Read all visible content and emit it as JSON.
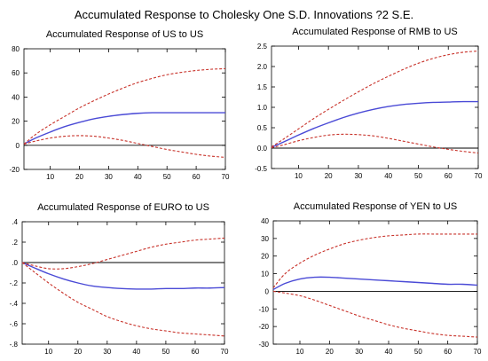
{
  "figure": {
    "title": "Accumulated Response to Cholesky One S.D. Innovations ?2 S.E."
  },
  "colors": {
    "response": "#4a4ad6",
    "band": "#c8322a",
    "zero_line": "#000000",
    "frame": "#000000"
  },
  "chart_data": [
    {
      "type": "line",
      "title": "Accumulated Response of US to US",
      "xlabel": "",
      "ylabel": "",
      "xlim": [
        1,
        70
      ],
      "ylim": [
        -20,
        80
      ],
      "xticks": [
        10,
        20,
        30,
        40,
        50,
        60,
        70
      ],
      "yticks": [
        -20,
        0,
        20,
        40,
        60,
        80
      ],
      "ytick_labels": [
        "-20",
        "0",
        "20",
        "40",
        "60",
        "80"
      ],
      "grid": false,
      "zero_line": true,
      "x": [
        1,
        5,
        10,
        15,
        20,
        25,
        30,
        35,
        40,
        45,
        50,
        55,
        60,
        65,
        70
      ],
      "series": [
        {
          "role": "response",
          "style": "solid",
          "values": [
            1,
            6,
            11,
            15.5,
            19,
            22,
            24,
            25.5,
            26.5,
            27,
            27,
            27,
            27,
            27,
            27
          ]
        },
        {
          "role": "upper-band",
          "style": "dashed",
          "values": [
            1,
            9,
            17,
            24,
            31,
            37,
            42.5,
            47.5,
            52,
            55.5,
            58.5,
            60.5,
            62,
            63,
            63.5
          ]
        },
        {
          "role": "lower-band",
          "style": "dashed",
          "values": [
            1,
            3.5,
            6,
            7.5,
            8,
            7.5,
            6,
            4,
            1.5,
            -1,
            -3.5,
            -5.5,
            -7.5,
            -9,
            -10
          ]
        }
      ]
    },
    {
      "type": "line",
      "title": "Accumulated Response of RMB to US",
      "xlabel": "",
      "ylabel": "",
      "xlim": [
        1,
        70
      ],
      "ylim": [
        -0.5,
        2.5
      ],
      "xticks": [
        10,
        20,
        30,
        40,
        50,
        60,
        70
      ],
      "yticks": [
        -0.5,
        0,
        0.5,
        1,
        1.5,
        2,
        2.5
      ],
      "ytick_labels": [
        "-0.5",
        "0.0",
        "0.5",
        "1.0",
        "1.5",
        "2.0",
        "2.5"
      ],
      "grid": false,
      "zero_line": true,
      "x": [
        1,
        5,
        10,
        15,
        20,
        25,
        30,
        35,
        40,
        45,
        50,
        55,
        60,
        65,
        70
      ],
      "series": [
        {
          "role": "response",
          "style": "solid",
          "values": [
            0.02,
            0.15,
            0.32,
            0.48,
            0.62,
            0.75,
            0.86,
            0.95,
            1.02,
            1.07,
            1.1,
            1.12,
            1.13,
            1.14,
            1.14
          ]
        },
        {
          "role": "upper-band",
          "style": "dashed",
          "values": [
            0.03,
            0.22,
            0.47,
            0.72,
            0.95,
            1.17,
            1.38,
            1.58,
            1.76,
            1.93,
            2.08,
            2.2,
            2.29,
            2.35,
            2.38
          ]
        },
        {
          "role": "lower-band",
          "style": "dashed",
          "values": [
            0.01,
            0.08,
            0.18,
            0.26,
            0.32,
            0.34,
            0.33,
            0.3,
            0.24,
            0.17,
            0.1,
            0.03,
            -0.03,
            -0.08,
            -0.12
          ]
        }
      ]
    },
    {
      "type": "line",
      "title": "Accumulated Response of EURO to US",
      "xlabel": "",
      "ylabel": "",
      "xlim": [
        1,
        70
      ],
      "ylim": [
        -0.8,
        0.4
      ],
      "xticks": [
        10,
        20,
        30,
        40,
        50,
        60,
        70
      ],
      "yticks": [
        -0.8,
        -0.6,
        -0.4,
        -0.2,
        0,
        0.2,
        0.4
      ],
      "ytick_labels": [
        "-.8",
        "-.6",
        "-.4",
        "-.2",
        ".0",
        ".2",
        ".4"
      ],
      "grid": false,
      "zero_line": true,
      "x": [
        1,
        5,
        10,
        15,
        20,
        25,
        30,
        35,
        40,
        45,
        50,
        55,
        60,
        65,
        70
      ],
      "series": [
        {
          "role": "response",
          "style": "solid",
          "values": [
            0,
            -0.05,
            -0.11,
            -0.16,
            -0.2,
            -0.23,
            -0.245,
            -0.255,
            -0.26,
            -0.26,
            -0.255,
            -0.255,
            -0.25,
            -0.25,
            -0.245
          ]
        },
        {
          "role": "upper-band",
          "style": "dashed",
          "values": [
            0,
            -0.03,
            -0.06,
            -0.06,
            -0.04,
            -0.01,
            0.03,
            0.07,
            0.11,
            0.15,
            0.18,
            0.2,
            0.22,
            0.23,
            0.24
          ]
        },
        {
          "role": "lower-band",
          "style": "dashed",
          "values": [
            0,
            -0.09,
            -0.2,
            -0.3,
            -0.39,
            -0.46,
            -0.53,
            -0.58,
            -0.62,
            -0.65,
            -0.67,
            -0.69,
            -0.7,
            -0.71,
            -0.72
          ]
        }
      ]
    },
    {
      "type": "line",
      "title": "Accumulated Response of YEN to US",
      "xlabel": "",
      "ylabel": "",
      "xlim": [
        1,
        70
      ],
      "ylim": [
        -30,
        40
      ],
      "xticks": [
        10,
        20,
        30,
        40,
        50,
        60,
        70
      ],
      "yticks": [
        -30,
        -20,
        -10,
        0,
        10,
        20,
        30,
        40
      ],
      "ytick_labels": [
        "-30",
        "-20",
        "-10",
        "0",
        "10",
        "20",
        "30",
        "40"
      ],
      "grid": false,
      "zero_line": true,
      "x": [
        1,
        5,
        10,
        15,
        20,
        25,
        30,
        35,
        40,
        45,
        50,
        55,
        60,
        65,
        70
      ],
      "series": [
        {
          "role": "response",
          "style": "solid",
          "values": [
            1,
            4.5,
            7,
            8,
            8,
            7.5,
            7,
            6.5,
            6,
            5.5,
            5,
            4.5,
            4,
            4,
            3.5
          ]
        },
        {
          "role": "upper-band",
          "style": "dashed",
          "values": [
            2,
            10,
            16,
            20.5,
            24,
            27,
            29,
            30.5,
            31.5,
            32,
            32.5,
            32.5,
            32.5,
            32.5,
            32.5
          ]
        },
        {
          "role": "lower-band",
          "style": "dashed",
          "values": [
            0,
            -1,
            -2.5,
            -5,
            -8,
            -11,
            -14,
            -16.5,
            -19,
            -21,
            -22.5,
            -24,
            -25,
            -25.5,
            -26
          ]
        }
      ]
    }
  ]
}
